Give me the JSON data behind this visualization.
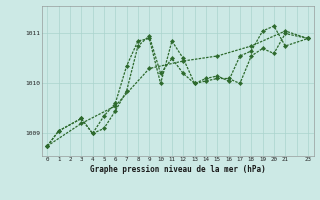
{
  "title": "Graphe pression niveau de la mer (hPa)",
  "background_color": "#cce9e5",
  "grid_color": "#aad4ce",
  "line_color": "#2d6a2d",
  "xlim": [
    -0.5,
    23.5
  ],
  "ylim": [
    1008.55,
    1011.55
  ],
  "yticks": [
    1009,
    1010,
    1011
  ],
  "xticks": [
    0,
    1,
    2,
    3,
    4,
    5,
    6,
    7,
    8,
    9,
    10,
    11,
    12,
    13,
    14,
    15,
    16,
    17,
    18,
    19,
    20,
    21,
    23
  ],
  "series1_x": [
    0,
    1,
    3,
    4,
    5,
    6,
    7,
    8,
    9,
    10,
    11,
    12,
    13,
    14,
    15,
    16,
    17,
    18,
    19,
    20,
    21,
    23
  ],
  "series1_y": [
    1008.75,
    1009.05,
    1009.3,
    1009.0,
    1009.1,
    1009.45,
    1009.85,
    1010.75,
    1010.95,
    1010.2,
    1010.5,
    1010.2,
    1010.0,
    1010.1,
    1010.15,
    1010.05,
    1010.55,
    1010.65,
    1011.05,
    1011.15,
    1010.75,
    1010.9
  ],
  "series2_x": [
    0,
    1,
    3,
    4,
    5,
    6,
    7,
    8,
    9,
    10,
    11,
    12,
    13,
    14,
    15,
    16,
    17,
    18,
    19,
    20,
    21,
    23
  ],
  "series2_y": [
    1008.75,
    1009.05,
    1009.3,
    1009.0,
    1009.35,
    1009.6,
    1010.35,
    1010.85,
    1010.9,
    1010.0,
    1010.85,
    1010.5,
    1010.0,
    1010.05,
    1010.1,
    1010.1,
    1010.0,
    1010.55,
    1010.7,
    1010.6,
    1011.0,
    1010.9
  ],
  "series3_x": [
    0,
    3,
    6,
    9,
    12,
    15,
    18,
    21,
    23
  ],
  "series3_y": [
    1008.75,
    1009.2,
    1009.55,
    1010.3,
    1010.45,
    1010.55,
    1010.75,
    1011.05,
    1010.9
  ]
}
